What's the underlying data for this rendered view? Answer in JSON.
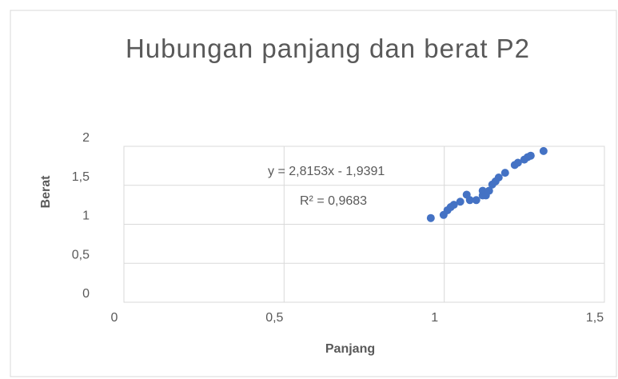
{
  "chart_data": {
    "type": "scatter",
    "title": "Hubungan panjang dan berat P2",
    "x_label": "Panjang",
    "y_label": "Berat",
    "trendline_label": "y = 2,8153x - 1,9391",
    "r2_label": "R² = 0,9683",
    "color": "#4472c4",
    "grid": true,
    "xlim": [
      0,
      1.5
    ],
    "ylim": [
      0,
      2
    ],
    "xticks": [
      0,
      {
        "value": 0.5,
        "label": "0,5"
      },
      1,
      {
        "value": 1.5,
        "label": "1,5"
      }
    ],
    "yticks": [
      0,
      {
        "value": 0.5,
        "label": "0,5"
      },
      1,
      {
        "value": 1.5,
        "label": "1,5"
      },
      2
    ],
    "x": [
      0.958,
      0.998,
      1.01,
      1.02,
      1.03,
      1.05,
      1.07,
      1.08,
      1.1,
      1.12,
      1.12,
      1.13,
      1.14,
      1.15,
      1.16,
      1.17,
      1.19,
      1.22,
      1.23,
      1.25,
      1.26,
      1.27,
      1.31
    ],
    "values": [
      1.08,
      1.12,
      1.18,
      1.22,
      1.25,
      1.29,
      1.38,
      1.31,
      1.31,
      1.37,
      1.43,
      1.37,
      1.43,
      1.51,
      1.55,
      1.6,
      1.66,
      1.76,
      1.79,
      1.83,
      1.86,
      1.88,
      1.94
    ]
  }
}
